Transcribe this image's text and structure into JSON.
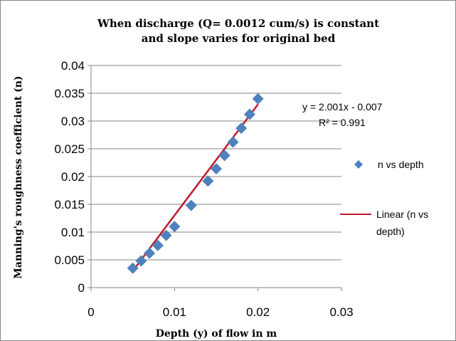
{
  "chart_data": {
    "type": "scatter",
    "title_lines": [
      "When discharge (Q= 0.0012 cum/s) is constant",
      "and slope varies for original bed"
    ],
    "xlabel": "Depth (y) of flow in m",
    "ylabel": "Manning's roughness coefficient (n)",
    "xlim": [
      0,
      0.03
    ],
    "ylim": [
      0,
      0.04
    ],
    "x_ticks": [
      "0",
      "0.01",
      "0.02",
      "0.03"
    ],
    "y_ticks": [
      "0",
      "0.005",
      "0.01",
      "0.015",
      "0.02",
      "0.025",
      "0.03",
      "0.035",
      "0.04"
    ],
    "grid": "horizontal",
    "series": [
      {
        "name": "n vs depth",
        "marker": "diamond",
        "color": "#4F81BD",
        "x": [
          0.005,
          0.006,
          0.007,
          0.008,
          0.009,
          0.01,
          0.012,
          0.014,
          0.015,
          0.016,
          0.017,
          0.018,
          0.019,
          0.02
        ],
        "y": [
          0.0035,
          0.0048,
          0.0062,
          0.0076,
          0.0094,
          0.011,
          0.0148,
          0.0192,
          0.0214,
          0.0238,
          0.0262,
          0.0287,
          0.0312,
          0.034
        ]
      }
    ],
    "trendline": {
      "name": "Linear (n vs depth)",
      "legend_lines": [
        "Linear (n vs",
        "depth)"
      ],
      "color": "#C0192E",
      "slope": 2.001,
      "intercept": -0.007,
      "x_range": [
        0.005,
        0.02
      ],
      "equation": "y = 2.001x - 0.007",
      "r2": "R² = 0.991"
    },
    "legend_position": "right"
  }
}
